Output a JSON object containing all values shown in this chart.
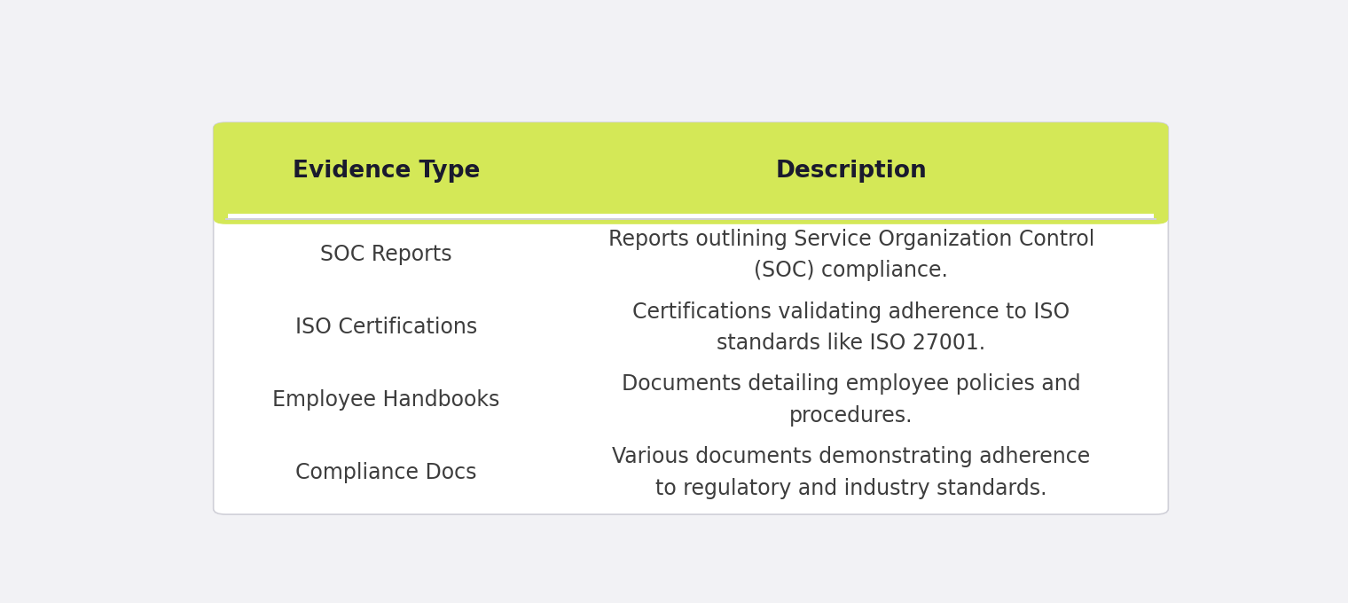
{
  "header": [
    "Evidence Type",
    "Description"
  ],
  "rows": [
    [
      "SOC Reports",
      "Reports outlining Service Organization Control\n(SOC) compliance."
    ],
    [
      "ISO Certifications",
      "Certifications validating adherence to ISO\nstandards like ISO 27001."
    ],
    [
      "Employee Handbooks",
      "Documents detailing employee policies and\nprocedures."
    ],
    [
      "Compliance Docs",
      "Various documents demonstrating adherence\nto regulatory and industry standards."
    ]
  ],
  "header_bg_color": "#d4e857",
  "table_bg_color": "#ffffff",
  "outer_bg_color": "#f2f2f5",
  "header_text_color": "#1a1a2e",
  "row_text_color": "#3d3d3d",
  "border_color": "#d0d0d8",
  "header_fontsize": 19,
  "row_fontsize": 17,
  "figsize": [
    15.2,
    6.8
  ],
  "dpi": 100
}
